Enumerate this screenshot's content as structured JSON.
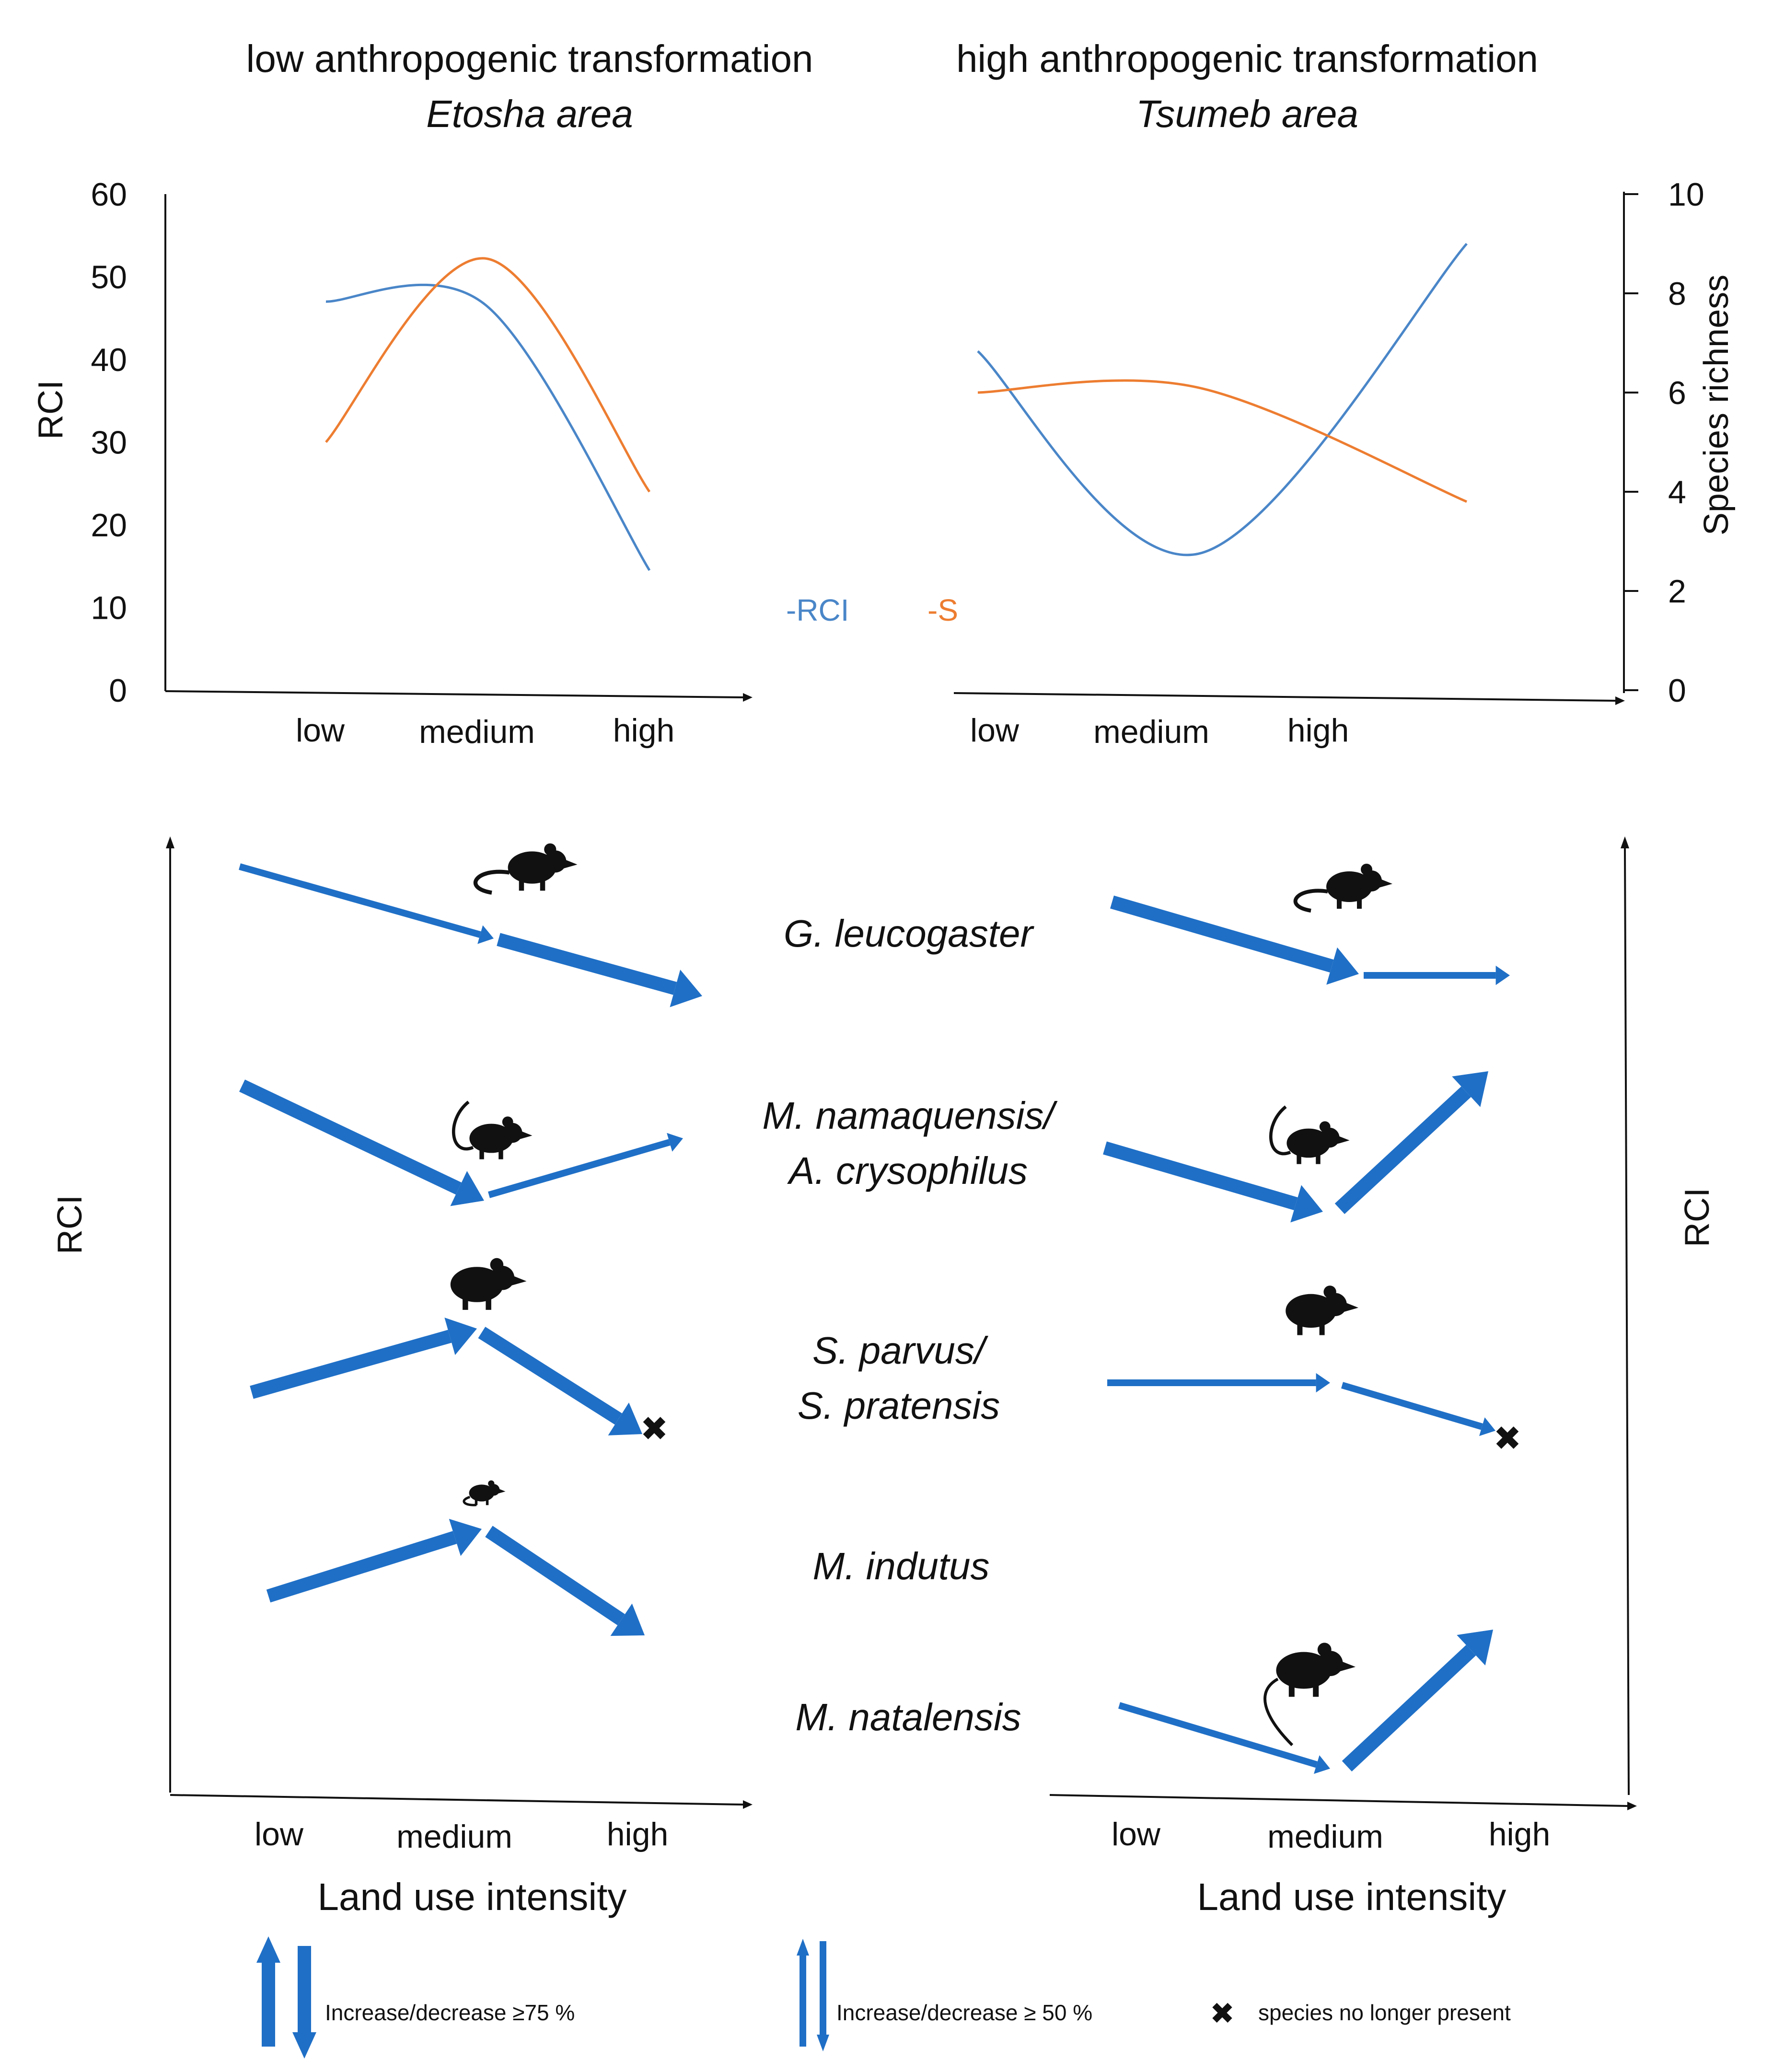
{
  "titles": {
    "left_line1": "low anthropogenic transformation",
    "left_line2": "Etosha area",
    "right_line1": "high anthropogenic transformation",
    "right_line2": "Tsumeb area"
  },
  "axes": {
    "rci_label": "RCI",
    "species_richness_label": "Species richness",
    "land_use_label": "Land use intensity",
    "intensity_levels": [
      "low",
      "medium",
      "high"
    ]
  },
  "colors": {
    "rci": "#4a86c8",
    "s": "#ed7d31",
    "arrow": "#1f6fc6",
    "text": "#111111"
  },
  "chart_data": [
    {
      "type": "line",
      "panel": "Etosha area",
      "title": "low anthropogenic transformation",
      "categories": [
        "low",
        "medium",
        "high"
      ],
      "series": [
        {
          "name": "RCI",
          "axis": "left",
          "values": [
            47,
            46.5,
            14.5
          ]
        },
        {
          "name": "S",
          "axis": "right",
          "values": [
            5,
            8.7,
            4
          ]
        }
      ],
      "ylabel_left": "RCI",
      "ylim_left": [
        0,
        60
      ],
      "ylabel_right": "Species richness",
      "ylim_right": [
        0,
        10
      ],
      "yticks_left": [
        0,
        10,
        20,
        30,
        40,
        50,
        60
      ],
      "yticks_right": [
        0,
        2,
        4,
        6,
        8,
        10
      ]
    },
    {
      "type": "line",
      "panel": "Tsumeb area",
      "title": "high anthropogenic transformation",
      "categories": [
        "low",
        "medium",
        "high"
      ],
      "series": [
        {
          "name": "RCI",
          "axis": "left",
          "values": [
            41,
            16.5,
            54
          ]
        },
        {
          "name": "S",
          "axis": "right",
          "values": [
            6,
            6.1,
            3.8
          ]
        }
      ],
      "ylabel_left": "RCI",
      "ylim_left": [
        0,
        60
      ],
      "ylabel_right": "Species richness",
      "ylim_right": [
        0,
        10
      ]
    }
  ],
  "legend_top": {
    "rci": "-RCI",
    "s": "-S"
  },
  "species": [
    {
      "name": "G. leucogaster",
      "etosha": [
        "decrease",
        "decrease ≥75 %"
      ],
      "tsumeb": [
        "decrease ≥75 %",
        "no change"
      ]
    },
    {
      "name_line1": "M. namaquensis/",
      "name_line2": "A. crysophilus",
      "etosha": [
        "decrease ≥75 %",
        "increase"
      ],
      "tsumeb": [
        "decrease ≥75 %",
        "increase ≥75 %"
      ]
    },
    {
      "name_line1": "S. parvus/",
      "name_line2": "S. pratensis",
      "etosha": [
        "increase ≥75 %",
        "decrease ≥75 %",
        "species no longer present"
      ],
      "tsumeb": [
        "no change",
        "decrease",
        "species no longer present"
      ]
    },
    {
      "name": "M. indutus",
      "etosha": [
        "increase ≥75 %",
        "decrease ≥75 %"
      ],
      "tsumeb": []
    },
    {
      "name": "M. natalensis",
      "etosha": [],
      "tsumeb": [
        "decrease",
        "increase ≥75 %"
      ]
    }
  ],
  "legend_bottom": {
    "thick": "Increase/decrease ≥75 %",
    "thin": "Increase/decrease ≥ 50 %",
    "cross": "species no longer present"
  }
}
